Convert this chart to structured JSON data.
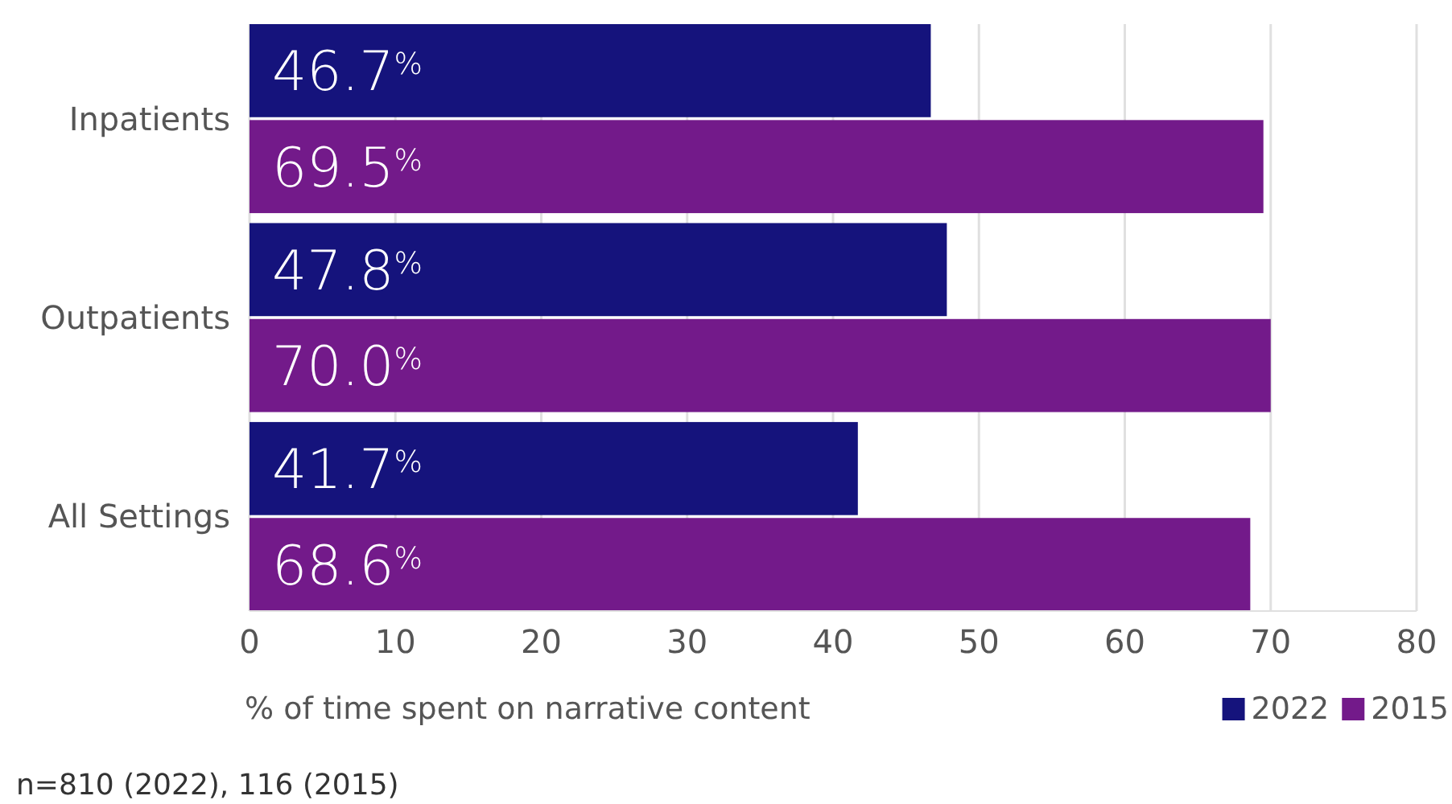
{
  "chart_data": {
    "type": "bar",
    "orientation": "horizontal",
    "categories": [
      "Inpatients",
      "Outpatients",
      "All Settings"
    ],
    "series": [
      {
        "name": "2022",
        "color": "#15137c",
        "values": [
          46.7,
          47.8,
          41.7
        ],
        "value_labels": [
          "46.7$^{%}$",
          "47.8$^{%}$",
          "41.7$^{%}$"
        ]
      },
      {
        "name": "2015",
        "color": "#731a8a",
        "values": [
          69.5,
          70.0,
          68.6
        ],
        "value_labels": [
          "69.5$^{%}$",
          "70.0$^{%}$",
          "68.6$^{%}$"
        ]
      }
    ],
    "xlim": [
      0,
      80
    ],
    "xticks": [
      0,
      10,
      20,
      30,
      40,
      50,
      60,
      70,
      80
    ],
    "xlabel": "% of time spent on narrative content",
    "grid": "x",
    "legend": "bottom right",
    "annotations": [
      "n=810 (2022), 116 (2015)"
    ]
  }
}
